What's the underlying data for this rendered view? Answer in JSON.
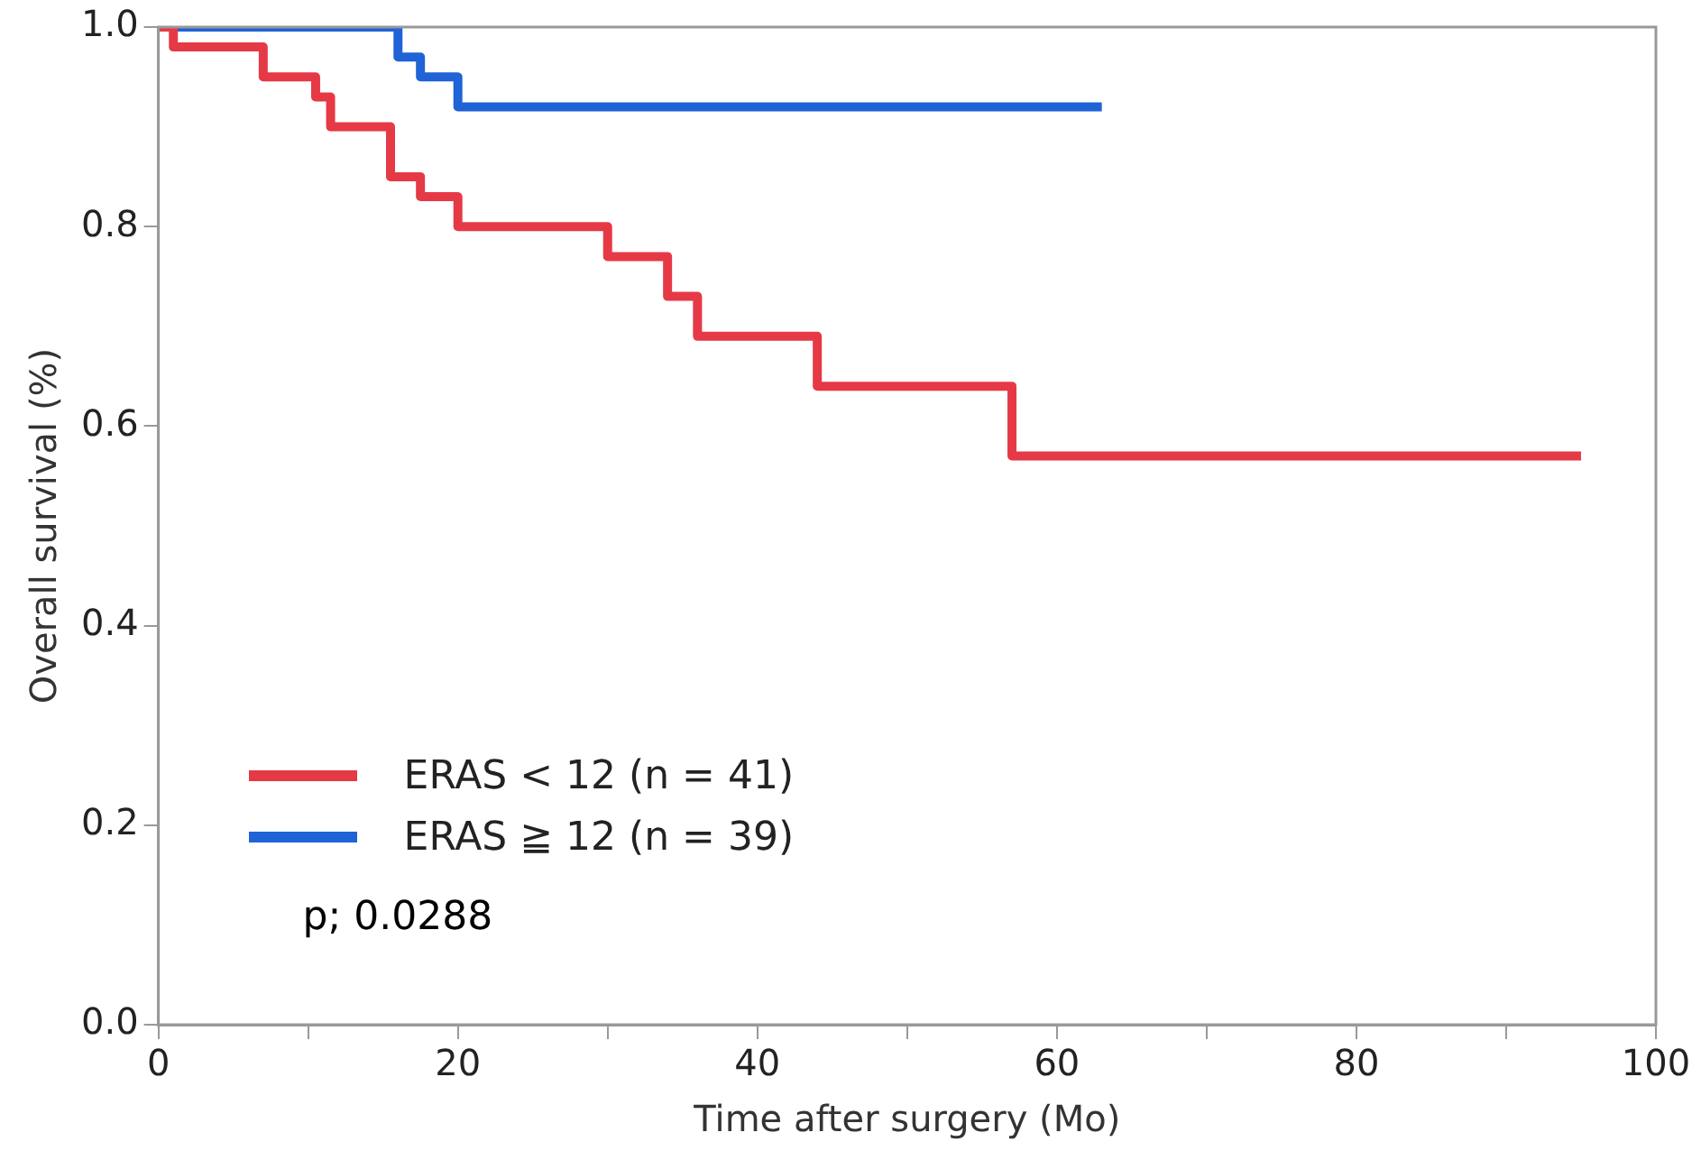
{
  "chart_data": {
    "type": "step",
    "xlabel": "Time after surgery (Mo)",
    "ylabel": "Overall survival (%)",
    "series": [
      {
        "name": "ERAS < 12 (n = 41)",
        "color": "#e63946",
        "x": [
          0,
          1,
          7,
          10.5,
          11.5,
          15.5,
          17.5,
          20,
          30,
          34,
          36,
          44,
          57,
          95
        ],
        "values": [
          1,
          0.98,
          0.95,
          0.93,
          0.9,
          0.85,
          0.83,
          0.8,
          0.77,
          0.73,
          0.69,
          0.64,
          0.57,
          0.57
        ]
      },
      {
        "name": "ERAS ≧ 12 (n = 39)",
        "color": "#1f63d6",
        "x": [
          0,
          16,
          17.5,
          20,
          63
        ],
        "values": [
          1,
          0.97,
          0.95,
          0.92,
          0.92
        ]
      }
    ],
    "xlim": [
      0,
      100
    ],
    "xticks": [
      0,
      {
        "value": 10,
        "label": null
      },
      20,
      {
        "value": 30,
        "label": null
      },
      40,
      {
        "value": 50,
        "label": null
      },
      60,
      {
        "value": 70,
        "label": null
      },
      80,
      {
        "value": 90,
        "label": null
      },
      100
    ],
    "ylim": [
      0,
      1
    ],
    "yticks": [
      {
        "value": 0,
        "label": "0.0"
      },
      {
        "value": 0.2,
        "label": "0.2"
      },
      {
        "value": 0.4,
        "label": "0.4"
      },
      {
        "value": 0.6,
        "label": "0.6"
      },
      {
        "value": 0.8,
        "label": "0.8"
      },
      {
        "value": 1,
        "label": "1.0"
      }
    ],
    "grid": false,
    "legend": "bottom left",
    "marker": "none",
    "line_style": "solid",
    "annotations": [
      "p; 0.0288"
    ]
  }
}
